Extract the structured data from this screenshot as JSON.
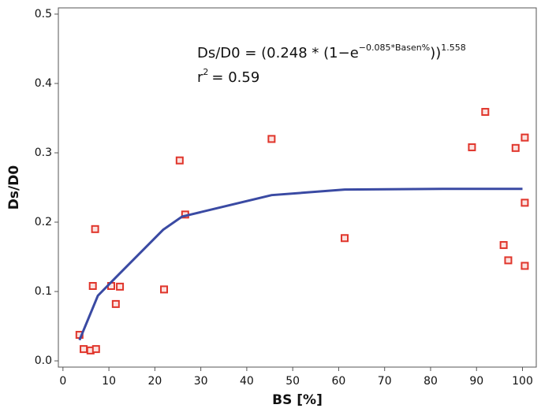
{
  "chart_data": {
    "type": "scatter",
    "x_label": "BS [%]",
    "y_label": "Ds/D0",
    "annotation": {
      "equation_base": "Ds/D0 = (0.248 * (1−e",
      "equation_exponent": "−0.085*Basen%",
      "equation_close": "))",
      "equation_power": "1.558",
      "r2_base": "r",
      "r2_exponent": "2",
      "r2_value": "= 0.59"
    },
    "xlim": [
      -1,
      103
    ],
    "ylim": [
      -0.009,
      0.509
    ],
    "xticks": [
      0,
      10,
      20,
      30,
      40,
      50,
      60,
      70,
      80,
      90,
      100
    ],
    "yticks": [
      {
        "value": 0,
        "label": "0.0"
      },
      0.1,
      0.2,
      0.3,
      0.4,
      0.5
    ],
    "grid": false,
    "series": [
      {
        "type": "scatter",
        "color": "#e0352b",
        "x": [
          3.6,
          4.5,
          6.0,
          7.2,
          6.5,
          7.0,
          10.5,
          11.5,
          12.4,
          22.0,
          25.4,
          26.6,
          45.4,
          61.3,
          89.0,
          91.9,
          95.9,
          96.9,
          98.5,
          100.5,
          100.5,
          100.5
        ],
        "values": [
          0.0375,
          0.017,
          0.015,
          0.017,
          0.108,
          0.19,
          0.108,
          0.082,
          0.107,
          0.103,
          0.289,
          0.211,
          0.32,
          0.177,
          0.308,
          0.359,
          0.167,
          0.145,
          0.307,
          0.322,
          0.228,
          0.137
        ]
      },
      {
        "type": "line",
        "color": "#3a4aa3",
        "x": [
          3.6,
          7.6,
          12.2,
          21.8,
          25.9,
          45.4,
          61.3,
          82.6,
          100
        ],
        "values": [
          0.03,
          0.094,
          0.125,
          0.189,
          0.208,
          0.239,
          0.247,
          0.248,
          0.248
        ]
      }
    ]
  }
}
